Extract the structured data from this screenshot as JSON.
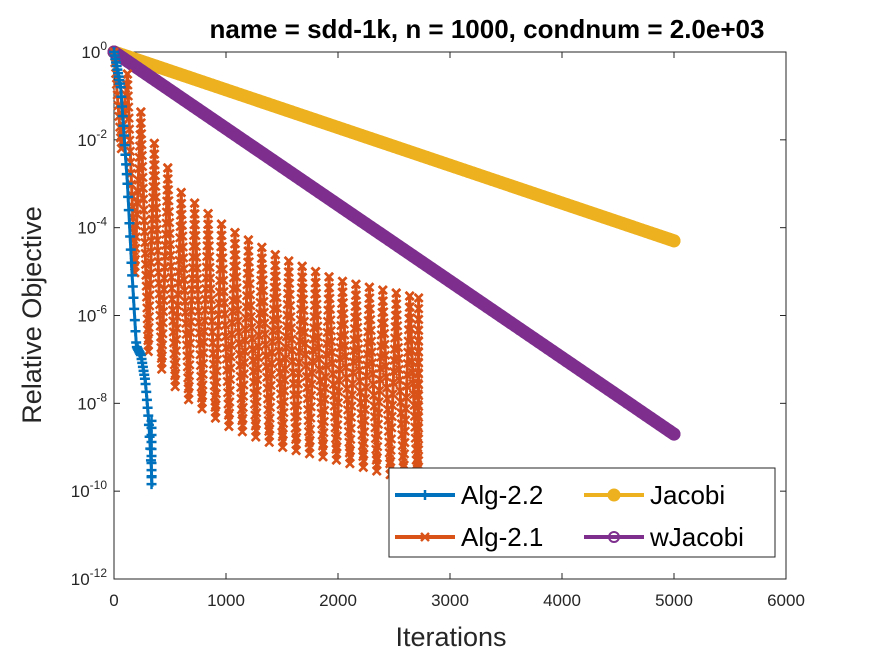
{
  "chart_data": {
    "type": "line",
    "title": "name = sdd-1k, n = 1000, condnum = 2.0e+03",
    "xlabel": "Iterations",
    "ylabel": "Relative Objective",
    "xlim": [
      0,
      6000
    ],
    "ylim_log10": [
      -12,
      0
    ],
    "yscale": "log",
    "grid": false,
    "legend_position": "bottom-right",
    "xticks": [
      "0",
      "1000",
      "2000",
      "3000",
      "4000",
      "5000",
      "6000"
    ],
    "yticks": [
      {
        "base": "10",
        "exp": "0"
      },
      {
        "base": "10",
        "exp": "-2"
      },
      {
        "base": "10",
        "exp": "-4"
      },
      {
        "base": "10",
        "exp": "-6"
      },
      {
        "base": "10",
        "exp": "-8"
      },
      {
        "base": "10",
        "exp": "-10"
      },
      {
        "base": "10",
        "exp": "-12"
      }
    ],
    "series": [
      {
        "name": "Alg-2.2",
        "color": "#0072BD",
        "marker": "+",
        "kind": "decay",
        "x": [
          0,
          60,
          120,
          160,
          200,
          240,
          280,
          310,
          330,
          340
        ],
        "log10y": [
          0,
          -0.8,
          -3.0,
          -5.0,
          -6.7,
          -6.9,
          -7.5,
          -8.4,
          -9.3,
          -9.9
        ]
      },
      {
        "name": "Alg-2.1",
        "color": "#D95319",
        "marker": "x",
        "kind": "oscillating",
        "cycle_period": 120,
        "x_start": 0,
        "x_end": 2720,
        "envelope_x": [
          0,
          120,
          300,
          600,
          1000,
          1500,
          2000,
          2720
        ],
        "envelope_top_log10": [
          0,
          -0.5,
          -1.8,
          -3.2,
          -4.0,
          -4.7,
          -5.2,
          -5.6
        ],
        "envelope_bottom_log10": [
          0,
          -4.0,
          -6.8,
          -7.8,
          -8.5,
          -9.0,
          -9.3,
          -9.8
        ]
      },
      {
        "name": "Jacobi",
        "color": "#EDB120",
        "marker": "o",
        "kind": "line",
        "x": [
          0,
          5000
        ],
        "log10y": [
          0,
          -4.3
        ]
      },
      {
        "name": "wJacobi",
        "color": "#7E2F8E",
        "marker": "o",
        "kind": "line",
        "x": [
          0,
          5000
        ],
        "log10y": [
          0,
          -8.7
        ]
      }
    ]
  },
  "legend": {
    "items": [
      {
        "label": "Alg-2.2",
        "color": "#0072BD",
        "marker": "+"
      },
      {
        "label": "Jacobi",
        "color": "#EDB120",
        "marker": "o"
      },
      {
        "label": "Alg-2.1",
        "color": "#D95319",
        "marker": "x"
      },
      {
        "label": "wJacobi",
        "color": "#7E2F8E",
        "marker": "o"
      }
    ]
  }
}
